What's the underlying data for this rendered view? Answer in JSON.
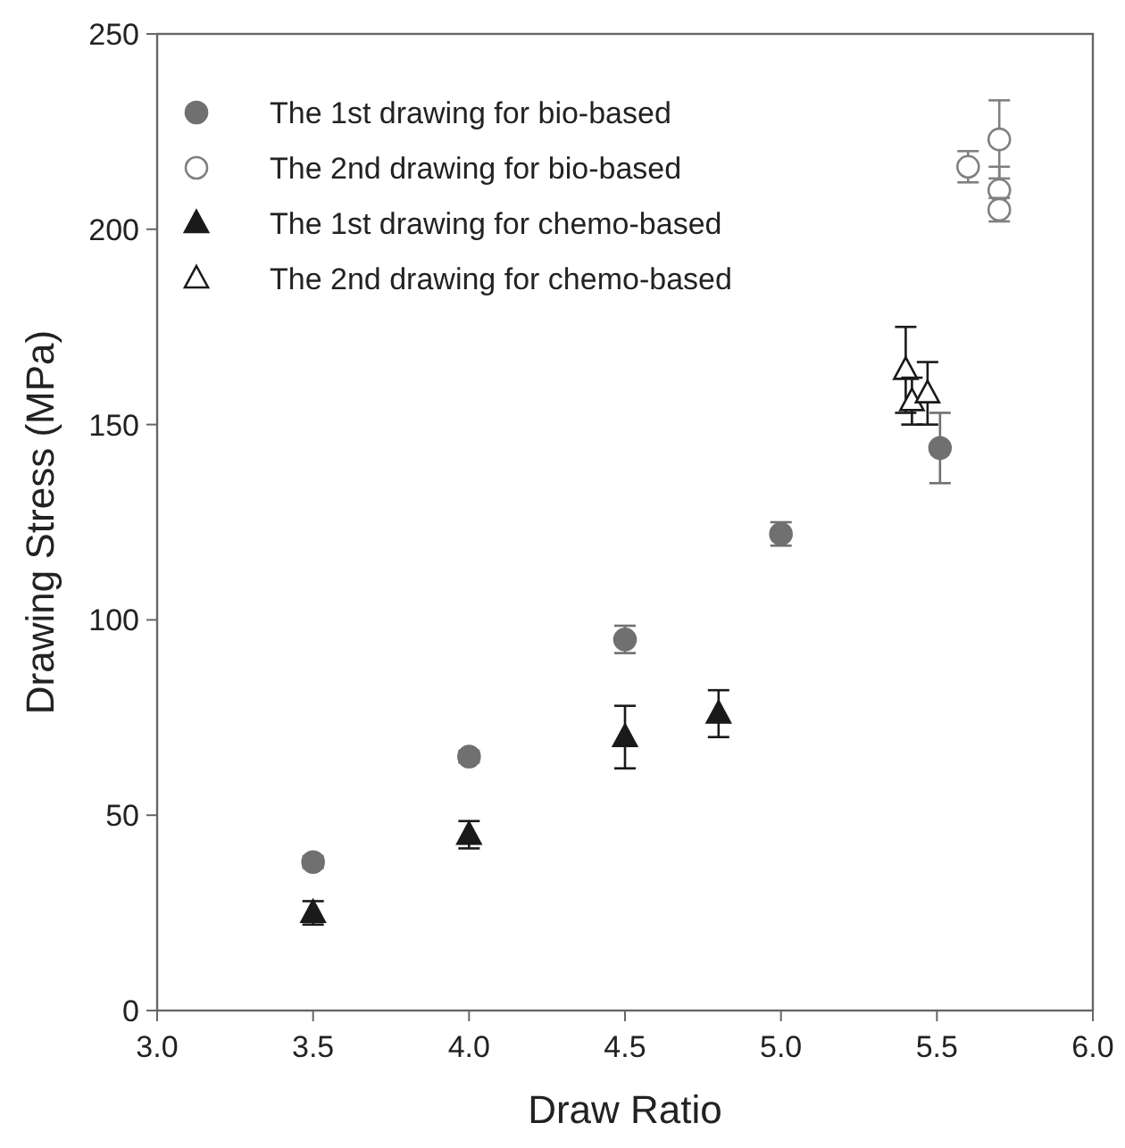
{
  "chart_data": {
    "type": "scatter",
    "xlabel": "Draw Ratio",
    "ylabel": "Drawing Stress (MPa)",
    "xlim": [
      3.0,
      6.0
    ],
    "xticks": [
      {
        "value": 3,
        "label": "3.0"
      },
      {
        "value": 3.5,
        "label": "3.5"
      },
      {
        "value": 4,
        "label": "4.0"
      },
      {
        "value": 4.5,
        "label": "4.5"
      },
      {
        "value": 5,
        "label": "5.0"
      },
      {
        "value": 5.5,
        "label": "5.5"
      },
      {
        "value": 6,
        "label": "6.0"
      }
    ],
    "ylim": [
      0,
      250
    ],
    "yticks": [
      0,
      50,
      100,
      150,
      200,
      250
    ],
    "grid": false,
    "legend": "top left",
    "series": [
      {
        "name": "The 1st drawing for bio-based",
        "color": "#707070",
        "marker": "circle",
        "x": [
          3.5,
          4.0,
          4.5,
          5.0,
          5.51
        ],
        "values": [
          38,
          65,
          95,
          122,
          144
        ],
        "errors": [
          1.5,
          1.5,
          3.5,
          3,
          9
        ]
      },
      {
        "name": "The 2nd drawing for bio-based",
        "color": "#808080",
        "marker": "circle",
        "x": [
          5.6,
          5.7,
          5.7,
          5.7
        ],
        "values": [
          216,
          223,
          210,
          205
        ],
        "errors": [
          4,
          10,
          6,
          3
        ]
      },
      {
        "name": "The 1st drawing for chemo-based",
        "color": "#1a1a1a",
        "marker": "triangle",
        "x": [
          3.5,
          4.0,
          4.5,
          4.8
        ],
        "values": [
          25,
          45,
          70,
          76
        ],
        "errors": [
          3,
          3.5,
          8,
          6
        ]
      },
      {
        "name": "The 2nd drawing for chemo-based",
        "color": "#1a1a1a",
        "marker": "triangle",
        "x": [
          5.4,
          5.42,
          5.47
        ],
        "values": [
          164,
          156,
          158
        ],
        "errors": [
          11,
          6,
          8
        ]
      }
    ]
  }
}
